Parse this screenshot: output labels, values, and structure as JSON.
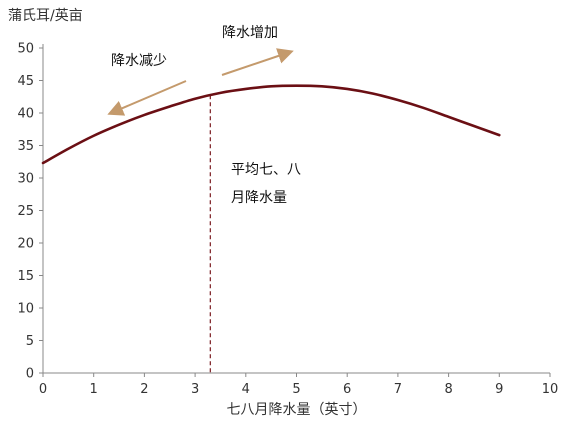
{
  "chart_data": {
    "type": "line",
    "title": "",
    "ylabel": "蒲氏耳/英亩",
    "xlabel": "七八月降水量（英寸）",
    "xlim": [
      0,
      10
    ],
    "ylim": [
      0,
      50
    ],
    "x_ticks": [
      "0",
      "1",
      "2",
      "3",
      "4",
      "5",
      "6",
      "7",
      "8",
      "9",
      "10"
    ],
    "y_ticks": [
      "0",
      "5",
      "10",
      "15",
      "20",
      "25",
      "30",
      "35",
      "40",
      "45",
      "50"
    ],
    "grid": false,
    "legend": "none",
    "series": [
      {
        "x": [
          0,
          0.5,
          1,
          1.5,
          2,
          2.5,
          3,
          3.5,
          4,
          4.5,
          5,
          5.5,
          6,
          6.5,
          7,
          7.5,
          8,
          8.5,
          9
        ],
        "y": [
          32.3,
          34.5,
          36.5,
          38.2,
          39.7,
          41.0,
          42.2,
          43.1,
          43.7,
          44.1,
          44.2,
          44.1,
          43.7,
          43.0,
          42.0,
          40.8,
          39.4,
          38.0,
          36.6
        ]
      }
    ],
    "reference_line": {
      "x": 3.3,
      "style": "dashed"
    },
    "annotations": {
      "increase_label": "降水增加",
      "decrease_label": "降水减少",
      "avg_label_line1": "平均七、八",
      "avg_label_line2": "月降水量"
    },
    "colors": {
      "curve": "#6b0f14",
      "arrow": "#c49a6c",
      "ref_line": "#7a1a1f",
      "axis": "#888888"
    }
  }
}
